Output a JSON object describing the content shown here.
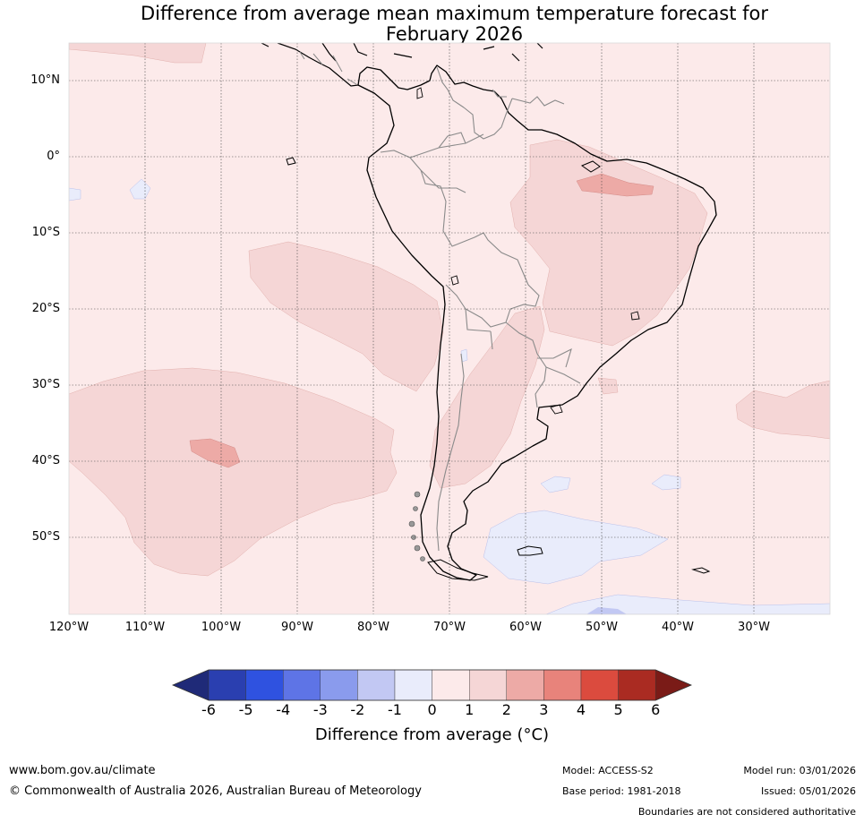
{
  "title": {
    "line1": "Difference from average mean maximum temperature forecast for",
    "line2": "February 2026"
  },
  "map": {
    "lat_labels": [
      "10°N",
      "0°",
      "10°S",
      "20°S",
      "30°S",
      "40°S",
      "50°S"
    ],
    "lon_labels": [
      "120°W",
      "110°W",
      "100°W",
      "90°W",
      "80°W",
      "70°W",
      "60°W",
      "50°W",
      "40°W",
      "30°W"
    ],
    "lat_range_deg": [
      -60,
      15
    ],
    "lon_range_deg": [
      -120,
      -20
    ]
  },
  "colorbar": {
    "ticks": [
      "-6",
      "-5",
      "-4",
      "-3",
      "-2",
      "-1",
      "0",
      "1",
      "2",
      "3",
      "4",
      "5",
      "6"
    ],
    "colors": [
      "#1f2a78",
      "#2a3fb0",
      "#2f52e0",
      "#5e74e6",
      "#8a9bed",
      "#c2c8f3",
      "#e9ecfb",
      "#fceaea",
      "#f5d6d6",
      "#edaaa6",
      "#e8837b",
      "#db4b3e",
      "#aa2b22",
      "#7a1b17"
    ],
    "label": "Difference from average (°C)"
  },
  "footer": {
    "url": "www.bom.gov.au/climate",
    "copyright": "© Commonwealth of Australia 2026, Australian Bureau of Meteorology",
    "model": "Model: ACCESS-S2",
    "base_period": "Base period: 1981-2018",
    "model_run": "Model run: 03/01/2026",
    "issued": "Issued: 05/01/2026",
    "boundaries": "Boundaries are not considered authoritative"
  }
}
